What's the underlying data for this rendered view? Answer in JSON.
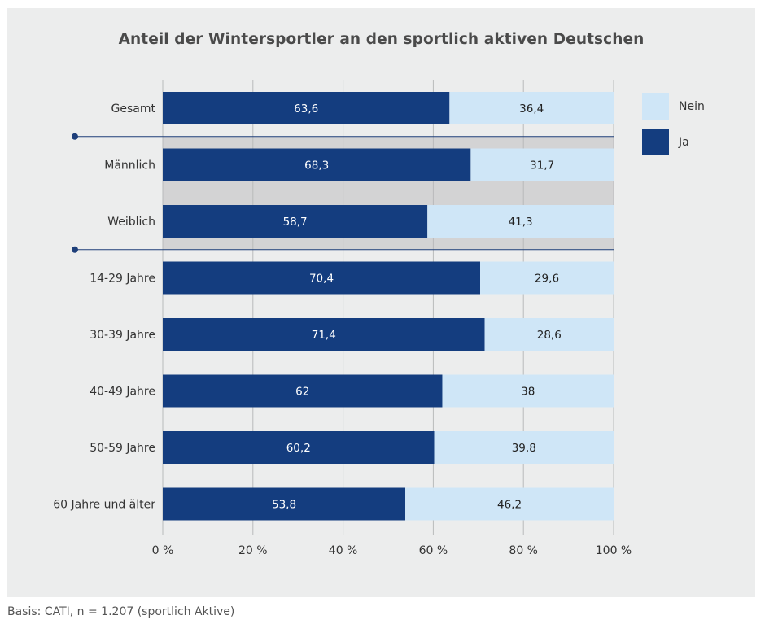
{
  "chart_data": {
    "type": "bar",
    "orientation": "horizontal",
    "stacked": true,
    "title": "Anteil der Wintersportler an den sportlich aktiven Deutschen",
    "categories": [
      "Gesamt",
      "Männlich",
      "Weiblich",
      "14-29 Jahre",
      "30-39 Jahre",
      "40-49 Jahre",
      "50-59 Jahre",
      "60 Jahre und älter"
    ],
    "series": [
      {
        "name": "Ja",
        "color": "#143d7f",
        "values": [
          63.6,
          68.3,
          58.7,
          70.4,
          71.4,
          62,
          60.2,
          53.8
        ],
        "labels": [
          "63,6",
          "68,3",
          "58,7",
          "70,4",
          "71,4",
          "62",
          "60,2",
          "53,8"
        ]
      },
      {
        "name": "Nein",
        "color": "#cfe6f7",
        "values": [
          36.4,
          31.7,
          41.3,
          29.6,
          28.6,
          38,
          39.8,
          46.2
        ],
        "labels": [
          "36,4",
          "31,7",
          "41,3",
          "29,6",
          "28,6",
          "38",
          "39,8",
          "46,2"
        ]
      }
    ],
    "xlim": [
      0,
      100
    ],
    "xticks": [
      "0 %",
      "20 %",
      "40 %",
      "60 %",
      "80 %",
      "100 %"
    ],
    "grid": true,
    "legend": {
      "position": "right",
      "order": [
        "Nein",
        "Ja"
      ]
    },
    "highlighted_group": [
      "Männlich",
      "Weiblich"
    ],
    "colors": {
      "panel": "#eceded",
      "group_band": "#d3d3d4",
      "gridline": "#b9babb",
      "separator": "#1e3f7a"
    }
  },
  "footer": {
    "basis": "Basis: CATI, n = 1.207 (sportlich Aktive)"
  }
}
